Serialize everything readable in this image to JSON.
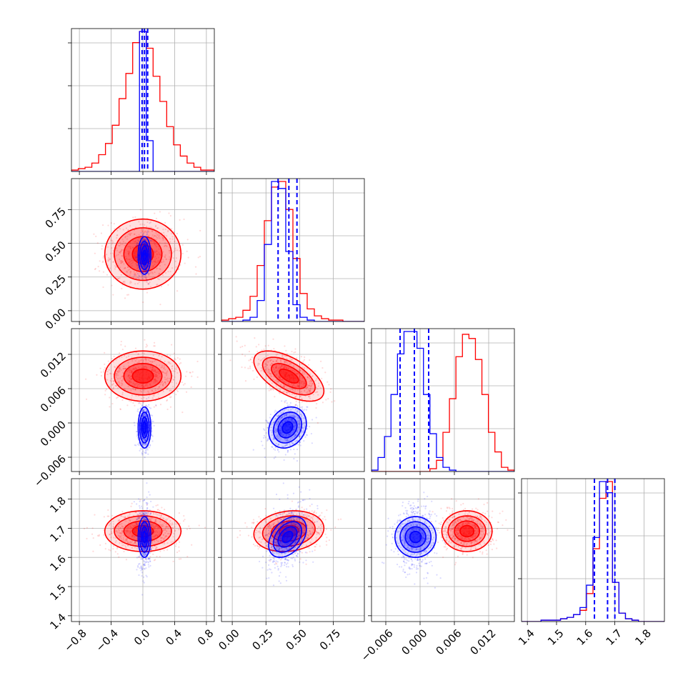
{
  "chart_data": {
    "type": "corner",
    "grid": true,
    "colors": {
      "series_a": "#ff0000",
      "series_b": "#0000ff"
    },
    "params": [
      {
        "range": [
          -0.9,
          0.9
        ],
        "ticks": [
          -0.8,
          -0.4,
          0.0,
          0.4,
          0.8
        ],
        "tick_labels": [
          "−0.8",
          "−0.4",
          "0.0",
          "0.4",
          "0.8"
        ]
      },
      {
        "range": [
          -0.08,
          0.98
        ],
        "ticks": [
          0.0,
          0.25,
          0.5,
          0.75
        ],
        "tick_labels": [
          "0.00",
          "0.25",
          "0.50",
          "0.75"
        ]
      },
      {
        "range": [
          -0.0085,
          0.0165
        ],
        "ticks": [
          -0.006,
          0.0,
          0.006,
          0.012
        ],
        "tick_labels": [
          "−0.006",
          "0.000",
          "0.006",
          "0.012"
        ]
      },
      {
        "range": [
          1.38,
          1.87
        ],
        "ticks": [
          1.4,
          1.5,
          1.6,
          1.7,
          1.8
        ],
        "tick_labels": [
          "1.4",
          "1.5",
          "1.6",
          "1.7",
          "1.8"
        ]
      }
    ],
    "series": [
      {
        "color": "#ff0000",
        "mean": [
          0.0,
          0.42,
          0.0082,
          1.69
        ],
        "std": [
          0.24,
          0.13,
          0.0022,
          0.035
        ],
        "corr01": 0.0,
        "corr12": -0.6,
        "corr13": 0.15,
        "corr23": 0.0
      },
      {
        "color": "#0000ff",
        "mean": [
          0.02,
          0.41,
          -0.0008,
          1.67
        ],
        "std": [
          0.04,
          0.07,
          0.0018,
          0.035
        ],
        "corr01": 0.0,
        "corr12": 0.2,
        "corr13": 0.4,
        "corr23": 0.0
      }
    ],
    "histograms": [
      {
        "param": 0,
        "counts_a": [
          1,
          2,
          3,
          6,
          12,
          20,
          33,
          52,
          70,
          92,
          100,
          88,
          68,
          50,
          32,
          19,
          11,
          6,
          3,
          1,
          1
        ],
        "counts_b": [
          0,
          0,
          0,
          0,
          0,
          0,
          0,
          0,
          0,
          0,
          100,
          22,
          0,
          0,
          0,
          0,
          0,
          0,
          0,
          0,
          0
        ],
        "quantiles_b": [
          -0.01,
          0.02,
          0.06
        ]
      },
      {
        "param": 1,
        "counts_a": [
          1,
          2,
          3,
          8,
          18,
          40,
          72,
          96,
          100,
          80,
          45,
          20,
          9,
          4,
          2,
          1,
          1,
          0,
          0,
          0
        ],
        "counts_b": [
          0,
          0,
          0,
          1,
          3,
          15,
          55,
          100,
          95,
          50,
          12,
          3,
          1,
          0,
          0,
          0,
          0,
          0,
          0,
          0
        ],
        "quantiles_b": [
          0.34,
          0.42,
          0.48
        ]
      },
      {
        "param": 2,
        "counts_a": [
          0,
          0,
          0,
          0,
          0,
          0,
          0,
          0,
          0,
          2,
          8,
          28,
          52,
          82,
          98,
          95,
          80,
          55,
          28,
          14,
          3,
          1
        ],
        "counts_b": [
          1,
          10,
          25,
          55,
          84,
          100,
          100,
          88,
          55,
          27,
          10,
          3,
          1,
          0,
          0,
          0,
          0,
          0,
          0,
          0,
          0,
          0
        ],
        "quantiles_b": [
          -0.0035,
          -0.001,
          0.0015
        ]
      },
      {
        "param": 3,
        "counts_a": [
          0,
          0,
          0,
          1,
          1,
          1,
          2,
          3,
          5,
          8,
          20,
          52,
          88,
          100,
          28,
          6,
          2,
          1,
          0,
          0,
          0,
          0
        ],
        "counts_b": [
          0,
          0,
          0,
          1,
          1,
          1,
          2,
          3,
          5,
          10,
          26,
          60,
          100,
          92,
          28,
          6,
          2,
          1,
          0,
          0,
          0,
          0
        ],
        "quantiles_b": [
          1.63,
          1.675,
          1.7
        ]
      }
    ]
  }
}
